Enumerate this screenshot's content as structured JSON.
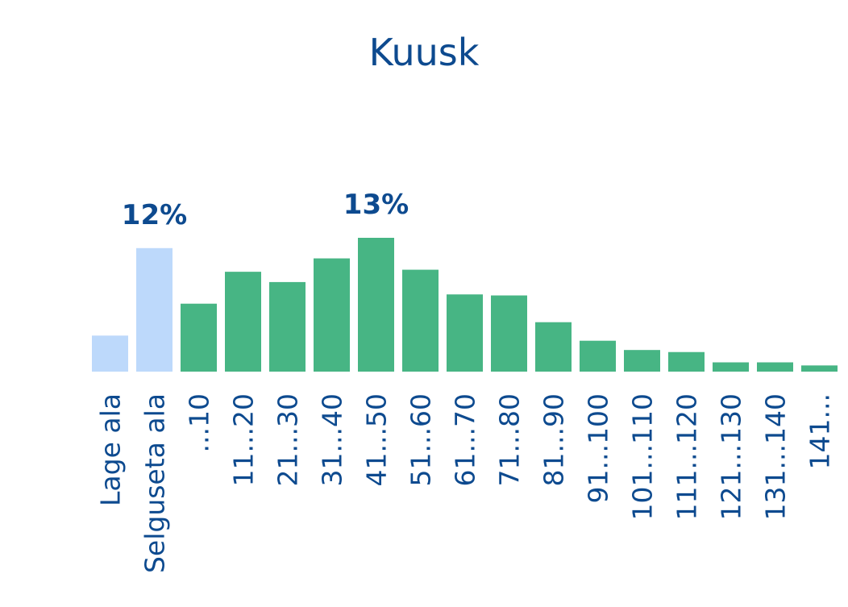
{
  "chart_data": {
    "type": "bar",
    "title": "Kuusk",
    "categories": [
      "Lage ala",
      "Selguseta ala",
      "...10",
      "11...20",
      "21...30",
      "31...40",
      "41...50",
      "51...60",
      "61...70",
      "71...80",
      "81...90",
      "91...100",
      "101...110",
      "111...120",
      "121...130",
      "131...140",
      "141..."
    ],
    "values": [
      3.5,
      12,
      6.6,
      9.7,
      8.7,
      11,
      13,
      9.9,
      7.5,
      7.4,
      4.8,
      3.0,
      2.1,
      1.9,
      0.9,
      0.9,
      0.6
    ],
    "category_kind": [
      "other",
      "other",
      "age",
      "age",
      "age",
      "age",
      "age",
      "age",
      "age",
      "age",
      "age",
      "age",
      "age",
      "age",
      "age",
      "age",
      "age"
    ],
    "data_labels": [
      {
        "category": "Selguseta ala",
        "text": "12%"
      },
      {
        "category": "41...50",
        "text": "13%"
      }
    ],
    "colors": {
      "other": "#bdd9fb",
      "age": "#47b584",
      "text": "#0d4a8f"
    },
    "xlabel": "",
    "ylabel": "",
    "ylim": [
      0,
      13
    ],
    "grid": false,
    "legend": "none"
  }
}
